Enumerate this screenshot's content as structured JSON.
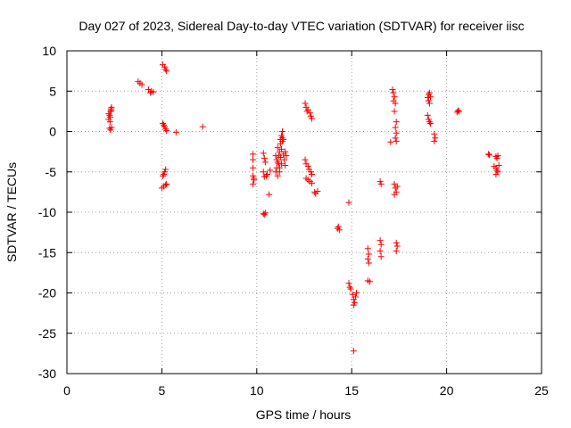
{
  "chart_data": {
    "type": "scatter",
    "title": "Day 027 of 2023, Sidereal Day-to-day VTEC variation (SDTVAR) for receiver iisc",
    "xlabel": "GPS time / hours",
    "ylabel": "SDTVAR / TECUs",
    "xlim": [
      0,
      25
    ],
    "ylim": [
      -30,
      10
    ],
    "xticks": [
      0,
      5,
      10,
      15,
      20,
      25
    ],
    "yticks": [
      -30,
      -25,
      -20,
      -15,
      -10,
      -5,
      0,
      5,
      10
    ],
    "xtick_labels": [
      "0",
      "5",
      "10",
      "15",
      "20",
      "25"
    ],
    "ytick_labels": [
      "-30",
      "-25",
      "-20",
      "-15",
      "-10",
      "-5",
      "0",
      "5",
      "10"
    ],
    "grid": true,
    "marker": "+",
    "color": "#ff0000",
    "series": [
      {
        "name": "SDTVAR",
        "points": [
          [
            2.2,
            1.5
          ],
          [
            2.25,
            2.0
          ],
          [
            2.3,
            2.5
          ],
          [
            2.35,
            3.0
          ],
          [
            2.2,
            2.2
          ],
          [
            2.28,
            1.8
          ],
          [
            2.32,
            2.8
          ],
          [
            2.25,
            0.4
          ],
          [
            2.3,
            0.2
          ],
          [
            2.35,
            0.5
          ],
          [
            2.27,
            1.2
          ],
          [
            2.33,
            2.6
          ],
          [
            3.75,
            6.2
          ],
          [
            3.85,
            6.0
          ],
          [
            3.95,
            5.8
          ],
          [
            4.3,
            5.2
          ],
          [
            4.45,
            5.0
          ],
          [
            4.55,
            4.9
          ],
          [
            4.4,
            4.8
          ],
          [
            5.05,
            8.3
          ],
          [
            5.15,
            8.0
          ],
          [
            5.2,
            7.7
          ],
          [
            5.25,
            7.5
          ],
          [
            5.05,
            1.0
          ],
          [
            5.1,
            0.8
          ],
          [
            5.15,
            0.6
          ],
          [
            5.2,
            0.3
          ],
          [
            5.25,
            0.1
          ],
          [
            5.05,
            -5.5
          ],
          [
            5.1,
            -5.3
          ],
          [
            5.15,
            -5.0
          ],
          [
            5.2,
            -4.7
          ],
          [
            5.0,
            -7.0
          ],
          [
            5.1,
            -6.8
          ],
          [
            5.2,
            -6.6
          ],
          [
            5.25,
            -6.5
          ],
          [
            5.75,
            -0.1
          ],
          [
            7.15,
            0.6
          ],
          [
            9.8,
            -2.8
          ],
          [
            9.8,
            -3.5
          ],
          [
            9.8,
            -4.5
          ],
          [
            9.8,
            -5.5
          ],
          [
            9.8,
            -6.5
          ],
          [
            9.85,
            -6.0
          ],
          [
            9.85,
            -5.8
          ],
          [
            10.35,
            -2.7
          ],
          [
            10.4,
            -3.3
          ],
          [
            10.45,
            -3.8
          ],
          [
            10.35,
            -5.0
          ],
          [
            10.4,
            -5.6
          ],
          [
            10.5,
            -5.5
          ],
          [
            10.55,
            -5.3
          ],
          [
            10.35,
            -10.2
          ],
          [
            10.4,
            -10.3
          ],
          [
            10.45,
            -10.1
          ],
          [
            10.65,
            -7.8
          ],
          [
            10.7,
            -4.8
          ],
          [
            11.0,
            -3.0
          ],
          [
            11.05,
            -4.5
          ],
          [
            11.1,
            -5.5
          ],
          [
            11.15,
            -4.0
          ],
          [
            11.2,
            -2.5
          ],
          [
            11.25,
            -1.5
          ],
          [
            11.3,
            -0.5
          ],
          [
            11.35,
            0.0
          ],
          [
            11.4,
            -1.0
          ],
          [
            11.0,
            -5.0
          ],
          [
            11.05,
            -3.5
          ],
          [
            11.1,
            -2.0
          ],
          [
            11.15,
            -3.0
          ],
          [
            11.2,
            -4.5
          ],
          [
            11.25,
            -3.2
          ],
          [
            11.3,
            -2.2
          ],
          [
            11.35,
            -1.2
          ],
          [
            11.4,
            -2.8
          ],
          [
            11.45,
            -3.5
          ],
          [
            11.5,
            -2.5
          ],
          [
            11.5,
            -4.2
          ],
          [
            11.55,
            -3.0
          ],
          [
            11.2,
            -5.0
          ],
          [
            11.3,
            -4.0
          ],
          [
            11.1,
            -3.8
          ],
          [
            11.25,
            -1.0
          ],
          [
            11.35,
            -0.8
          ],
          [
            12.55,
            3.5
          ],
          [
            12.6,
            3.0
          ],
          [
            12.7,
            2.7
          ],
          [
            12.8,
            2.3
          ],
          [
            12.85,
            1.9
          ],
          [
            12.9,
            1.6
          ],
          [
            12.65,
            2.5
          ],
          [
            12.55,
            -3.5
          ],
          [
            12.6,
            -4.0
          ],
          [
            12.7,
            -4.3
          ],
          [
            12.75,
            -4.7
          ],
          [
            12.85,
            -5.0
          ],
          [
            12.9,
            -5.3
          ],
          [
            12.6,
            -5.8
          ],
          [
            12.7,
            -6.0
          ],
          [
            12.8,
            -6.2
          ],
          [
            12.9,
            -6.4
          ],
          [
            13.05,
            -7.5
          ],
          [
            13.1,
            -7.7
          ],
          [
            13.2,
            -7.4
          ],
          [
            14.25,
            -12.0
          ],
          [
            14.3,
            -11.8
          ],
          [
            14.35,
            -12.2
          ],
          [
            14.85,
            -8.8
          ],
          [
            14.85,
            -18.8
          ],
          [
            14.9,
            -19.3
          ],
          [
            14.95,
            -19.5
          ],
          [
            15.05,
            -20.2
          ],
          [
            15.1,
            -20.8
          ],
          [
            15.15,
            -21.2
          ],
          [
            15.2,
            -20.5
          ],
          [
            15.25,
            -20.0
          ],
          [
            15.1,
            -21.5
          ],
          [
            15.1,
            -27.2
          ],
          [
            15.85,
            -14.5
          ],
          [
            15.9,
            -15.2
          ],
          [
            15.85,
            -15.8
          ],
          [
            15.9,
            -16.3
          ],
          [
            15.85,
            -18.5
          ],
          [
            15.95,
            -18.6
          ],
          [
            16.5,
            -6.2
          ],
          [
            16.55,
            -6.5
          ],
          [
            16.5,
            -13.5
          ],
          [
            16.55,
            -14.0
          ],
          [
            16.5,
            -14.8
          ],
          [
            16.55,
            -15.5
          ],
          [
            17.15,
            5.2
          ],
          [
            17.2,
            4.8
          ],
          [
            17.25,
            4.3
          ],
          [
            17.2,
            3.8
          ],
          [
            17.3,
            3.5
          ],
          [
            17.25,
            2.5
          ],
          [
            17.35,
            1.2
          ],
          [
            17.3,
            0.5
          ],
          [
            17.35,
            -0.2
          ],
          [
            17.3,
            -0.8
          ],
          [
            17.35,
            -1.2
          ],
          [
            17.05,
            -1.3
          ],
          [
            17.25,
            -6.5
          ],
          [
            17.3,
            -7.0
          ],
          [
            17.35,
            -7.5
          ],
          [
            17.4,
            -6.8
          ],
          [
            17.25,
            -7.8
          ],
          [
            17.35,
            -13.8
          ],
          [
            17.4,
            -14.2
          ],
          [
            17.35,
            -14.8
          ],
          [
            19.0,
            4.2
          ],
          [
            19.05,
            4.6
          ],
          [
            19.1,
            4.8
          ],
          [
            19.15,
            4.3
          ],
          [
            19.05,
            3.8
          ],
          [
            19.1,
            3.5
          ],
          [
            19.0,
            2.0
          ],
          [
            19.05,
            1.5
          ],
          [
            19.1,
            1.2
          ],
          [
            19.15,
            1.0
          ],
          [
            19.35,
            -0.3
          ],
          [
            19.4,
            -0.8
          ],
          [
            19.35,
            -1.2
          ],
          [
            20.55,
            2.4
          ],
          [
            20.6,
            2.6
          ],
          [
            20.65,
            2.5
          ],
          [
            22.2,
            -2.8
          ],
          [
            22.25,
            -2.9
          ],
          [
            22.6,
            -3.1
          ],
          [
            22.65,
            -3.3
          ],
          [
            22.7,
            -3.0
          ],
          [
            22.5,
            -4.3
          ],
          [
            22.6,
            -4.5
          ],
          [
            22.65,
            -4.8
          ],
          [
            22.7,
            -5.0
          ],
          [
            22.6,
            -5.3
          ],
          [
            22.75,
            -4.2
          ]
        ]
      }
    ]
  }
}
